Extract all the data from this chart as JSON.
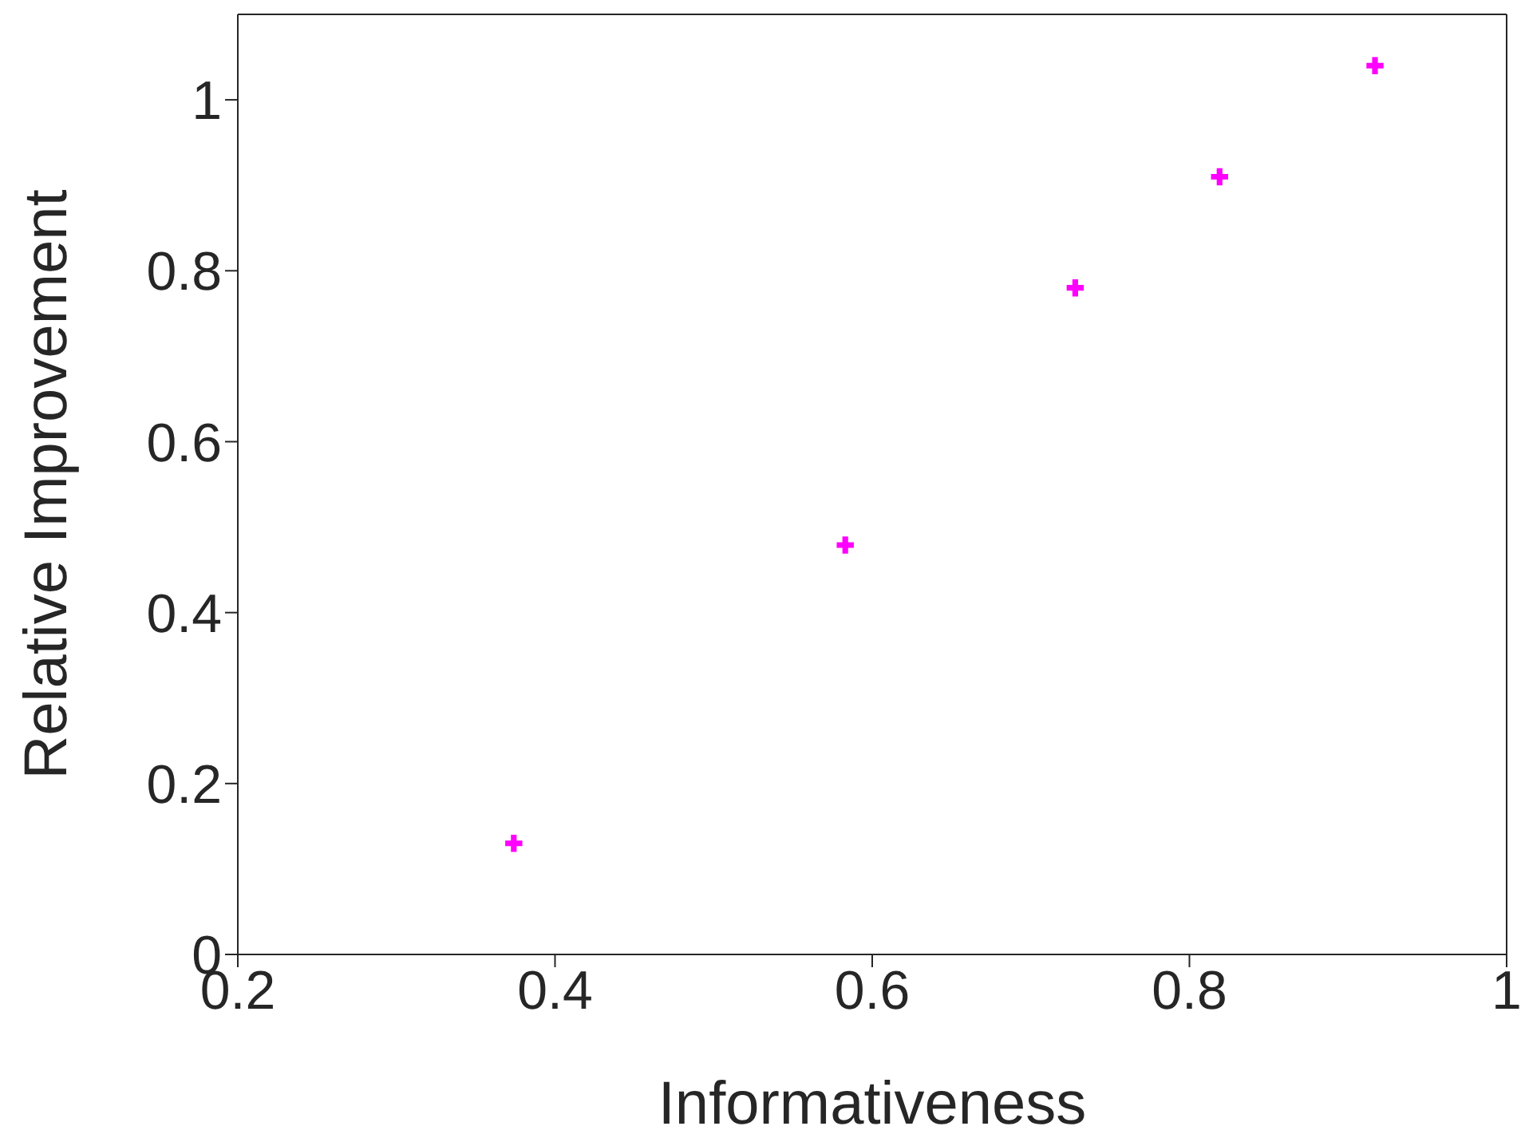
{
  "chart_data": {
    "type": "scatter",
    "xlabel": "Informativeness",
    "ylabel": "Relative Improvement",
    "x": [
      0.374,
      0.583,
      0.728,
      0.819,
      0.917
    ],
    "series": [
      {
        "color": "#ff00ff",
        "values": [
          0.13,
          0.479,
          0.78,
          0.91,
          1.04
        ]
      }
    ],
    "xlim": [
      0.2,
      1
    ],
    "xticks": [
      0.2,
      0.4,
      0.6,
      0.8,
      1
    ],
    "ylim": [
      0,
      1.1
    ],
    "yticks": [
      0,
      0.2,
      0.4,
      0.6,
      0.8,
      1
    ],
    "marker": "cross",
    "legend": false
  }
}
